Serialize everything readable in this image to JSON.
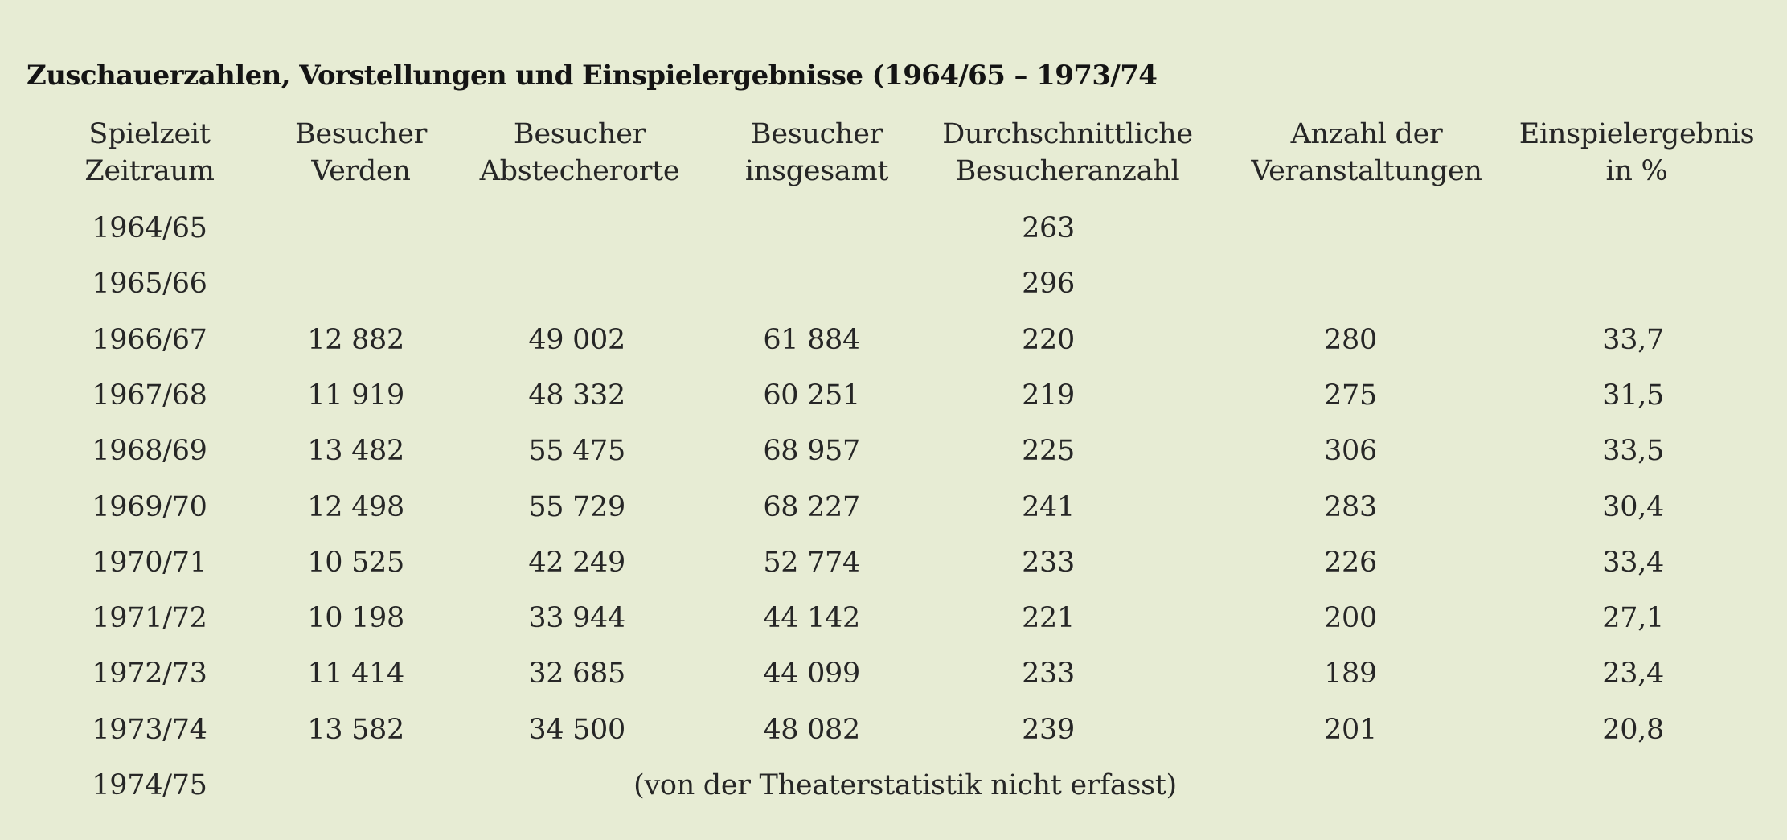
{
  "title": "Zuschauerzahlen, Vorstellungen und Einspielergebnisse (1964/65 – 1973/74",
  "headers": [
    {
      "line1": "Spielzeit",
      "line2": "Zeitraum"
    },
    {
      "line1": "Besucher",
      "line2": "Verden"
    },
    {
      "line1": "Besucher",
      "line2": "Abstecherorte"
    },
    {
      "line1": "Besucher",
      "line2": "insgesamt"
    },
    {
      "line1": "Durchschnittliche",
      "line2": "Besucheranzahl"
    },
    {
      "line1": "Anzahl der",
      "line2": "Veranstaltungen"
    },
    {
      "line1": "Einspielergebnis",
      "line2": "in %"
    }
  ],
  "rows": [
    {
      "year": "1964/65",
      "verden": "",
      "abstecher": "",
      "gesamt": "",
      "durchschnitt": "263",
      "anzahl": "",
      "ergebnis": ""
    },
    {
      "year": "1965/66",
      "verden": "",
      "abstecher": "",
      "gesamt": "",
      "durchschnitt": "296",
      "anzahl": "",
      "ergebnis": ""
    },
    {
      "year": "1966/67",
      "verden": "12 882",
      "abstecher": "49 002",
      "gesamt": "61 884",
      "durchschnitt": "220",
      "anzahl": "280",
      "ergebnis": "33,7"
    },
    {
      "year": "1967/68",
      "verden": "11 919",
      "abstecher": "48 332",
      "gesamt": "60 251",
      "durchschnitt": "219",
      "anzahl": "275",
      "ergebnis": "31,5"
    },
    {
      "year": "1968/69",
      "verden": "13 482",
      "abstecher": "55 475",
      "gesamt": "68 957",
      "durchschnitt": "225",
      "anzahl": "306",
      "ergebnis": "33,5"
    },
    {
      "year": "1969/70",
      "verden": "12 498",
      "abstecher": "55 729",
      "gesamt": "68 227",
      "durchschnitt": "241",
      "anzahl": "283",
      "ergebnis": "30,4"
    },
    {
      "year": "1970/71",
      "verden": "10 525",
      "abstecher": "42 249",
      "gesamt": "52 774",
      "durchschnitt": "233",
      "anzahl": "226",
      "ergebnis": "33,4"
    },
    {
      "year": "1971/72",
      "verden": "10 198",
      "abstecher": "33 944",
      "gesamt": "44 142",
      "durchschnitt": "221",
      "anzahl": "200",
      "ergebnis": "27,1"
    },
    {
      "year": "1972/73",
      "verden": "11 414",
      "abstecher": "32 685",
      "gesamt": "44 099",
      "durchschnitt": "233",
      "anzahl": "189",
      "ergebnis": "23,4"
    },
    {
      "year": "1973/74",
      "verden": "13 582",
      "abstecher": "34 500",
      "gesamt": "48 082",
      "durchschnitt": "239",
      "anzahl": "201",
      "ergebnis": "20,8"
    }
  ],
  "last_row": {
    "year": "1974/75",
    "note": "(von der Theaterstatistik nicht erfasst)"
  }
}
